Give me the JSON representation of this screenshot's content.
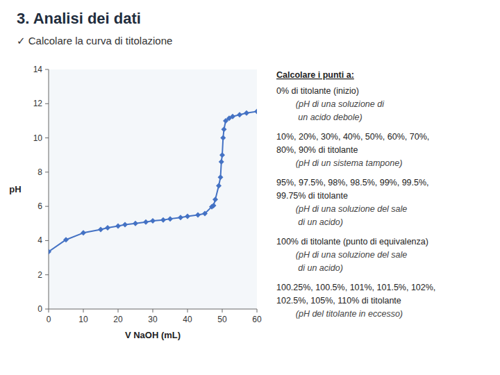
{
  "chart_data": {
    "type": "line",
    "title": "3. Analisi dei dati",
    "subtitle": "✓ Calcolare la curva di titolazione",
    "x_label": "V NaOH (mL)",
    "y_label": "pH",
    "xlim": [
      0,
      60
    ],
    "ylim": [
      0,
      14
    ],
    "xticks": [
      0,
      10,
      20,
      30,
      40,
      50,
      60
    ],
    "yticks": [
      0,
      2,
      4,
      6,
      8,
      10,
      12,
      14
    ],
    "grid": false,
    "color": "#4472C4",
    "marker": "diamond",
    "x": [
      0,
      5,
      10,
      15,
      17,
      20,
      22,
      25,
      28,
      30,
      33,
      35,
      38,
      40,
      43,
      45,
      47,
      47.5,
      48,
      49,
      49.5,
      49.75,
      50,
      50.25,
      50.5,
      51,
      52,
      53,
      55,
      57,
      60
    ],
    "values": [
      3.35,
      4.05,
      4.45,
      4.65,
      4.75,
      4.85,
      4.93,
      5.0,
      5.08,
      5.15,
      5.2,
      5.27,
      5.35,
      5.42,
      5.5,
      5.58,
      5.98,
      6.05,
      6.4,
      7.2,
      7.7,
      8.6,
      9.0,
      10.0,
      10.5,
      11.0,
      11.15,
      11.25,
      11.35,
      11.45,
      11.55
    ],
    "annotations": [
      "Calcolare i punti a:",
      "0% di titolante (inizio)",
      "        (pH di una soluzione di",
      "         un acido debole)",
      "10%, 20%, 30%, 40%, 50%, 60%, 70%,",
      "80%, 90% di titolante",
      "        (pH di un sistema tampone)",
      "95%, 97.5%, 98%, 98.5%, 99%, 99.5%,",
      "99.75% di titolante",
      "        (pH di una soluzione del sale",
      "         di un acido)",
      "100% di titolante (punto di equivalenza)",
      "        (pH di una soluzione del sale",
      "         di un acido)",
      "100.25%, 100.5%, 101%, 101.5%, 102%,",
      "102.5%, 105%, 110% di titolante",
      "        (pH del titolante in eccesso)"
    ]
  }
}
